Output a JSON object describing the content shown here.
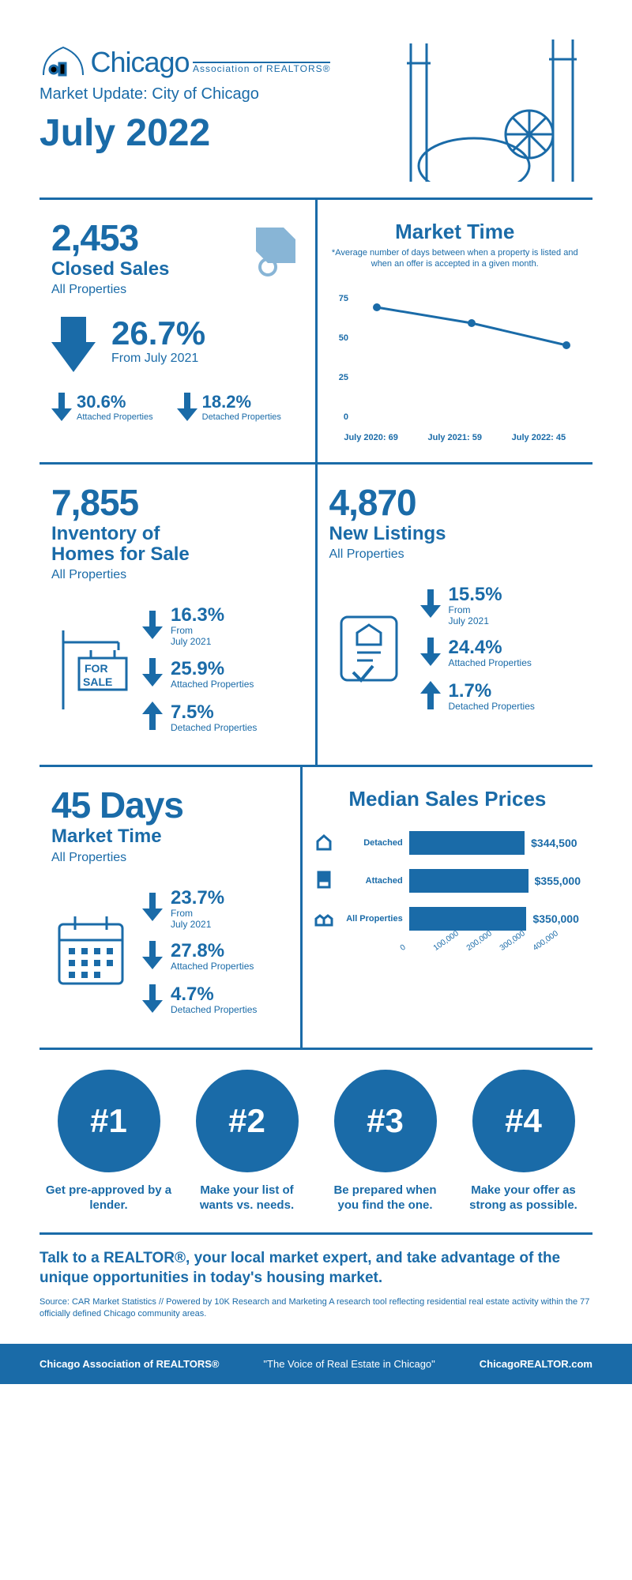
{
  "brand_color": "#1a6ba8",
  "logo": {
    "top": "Chicago",
    "sub": "Association of REALTORS®"
  },
  "subtitle": "Market Update: City of Chicago",
  "period": "July 2022",
  "closed_sales": {
    "value": "2,453",
    "title": "Closed Sales",
    "sub": "All Properties",
    "change_pct": "26.7%",
    "change_from": "From July 2021",
    "attached_pct": "30.6%",
    "attached_lbl": "Attached\nProperties",
    "detached_pct": "18.2%",
    "detached_lbl": "Detached\nProperties"
  },
  "market_time_chart": {
    "title": "Market Time",
    "note": "*Average number of days between when a property is listed and when an offer is accepted in a given month.",
    "type": "line",
    "y_ticks": [
      "0",
      "25",
      "50",
      "75"
    ],
    "points": [
      {
        "label": "July 2020: 69",
        "y": 69
      },
      {
        "label": "July 2021: 59",
        "y": 59
      },
      {
        "label": "July 2022: 45",
        "y": 45
      }
    ],
    "ylim": [
      0,
      80
    ],
    "line_color": "#1a6ba8",
    "marker": "circle"
  },
  "inventory": {
    "value": "7,855",
    "title": "Inventory of Homes for Sale",
    "sub": "All Properties",
    "rows": [
      {
        "pct": "16.3%",
        "dir": "down",
        "lbl": "From\nJuly 2021"
      },
      {
        "pct": "25.9%",
        "dir": "down",
        "lbl": "Attached Properties"
      },
      {
        "pct": "7.5%",
        "dir": "up",
        "lbl": "Detached Properties"
      }
    ]
  },
  "new_listings": {
    "value": "4,870",
    "title": "New Listings",
    "sub": "All Properties",
    "rows": [
      {
        "pct": "15.5%",
        "dir": "down",
        "lbl": "From\nJuly 2021"
      },
      {
        "pct": "24.4%",
        "dir": "down",
        "lbl": "Attached Properties"
      },
      {
        "pct": "1.7%",
        "dir": "up",
        "lbl": "Detached Properties"
      }
    ]
  },
  "days_market": {
    "value": "45 Days",
    "title": "Market Time",
    "sub": "All Properties",
    "rows": [
      {
        "pct": "23.7%",
        "dir": "down",
        "lbl": "From\nJuly 2021"
      },
      {
        "pct": "27.8%",
        "dir": "down",
        "lbl": "Attached Properties"
      },
      {
        "pct": "4.7%",
        "dir": "down",
        "lbl": "Detached Properties"
      }
    ]
  },
  "median_prices": {
    "title": "Median Sales Prices",
    "type": "bar_horizontal",
    "xlim": [
      0,
      400000
    ],
    "x_ticks": [
      "0",
      "100,000",
      "200,000",
      "300,000",
      "400,000"
    ],
    "bars": [
      {
        "label": "Detached",
        "value": 344500,
        "text": "$344,500"
      },
      {
        "label": "Attached",
        "value": 355000,
        "text": "$355,000"
      },
      {
        "label": "All Properties",
        "value": 350000,
        "text": "$350,000"
      }
    ],
    "bar_color": "#1a6ba8"
  },
  "tips": [
    {
      "n": "#1",
      "text": "Get pre-approved by a lender."
    },
    {
      "n": "#2",
      "text": "Make your list of wants vs. needs."
    },
    {
      "n": "#3",
      "text": "Be prepared when you find the one."
    },
    {
      "n": "#4",
      "text": "Make your offer as strong as possible."
    }
  ],
  "cta": "Talk to a REALTOR®, your local market expert, and take advantage of the unique opportunities in today's housing market.",
  "source": "Source: CAR Market Statistics // Powered by 10K Research and Marketing\nA research tool reflecting residential real estate activity within the 77 officially defined Chicago community areas.",
  "footer": {
    "left": "Chicago Association of REALTORS®",
    "mid": "\"The Voice of Real Estate in Chicago\"",
    "right": "ChicagoREALTOR.com"
  }
}
